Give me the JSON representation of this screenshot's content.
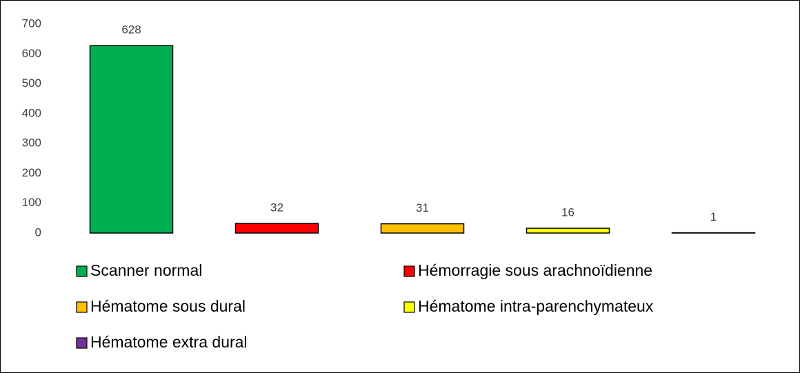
{
  "chart_data": {
    "type": "bar",
    "categories": [
      "Scanner normal",
      "Hémorragie sous arachnoïdienne",
      "Hématome sous dural",
      "Hématome intra-parenchymateux",
      "Hématome extra dural"
    ],
    "values": [
      628,
      32,
      31,
      16,
      1
    ],
    "colors": [
      "#00b050",
      "#ff0000",
      "#ffc000",
      "#ffff00",
      "#7030a0"
    ],
    "ylim": [
      0,
      700
    ],
    "yticks": [
      0,
      100,
      200,
      300,
      400,
      500,
      600,
      700
    ],
    "grid": false,
    "legend": "bottom"
  }
}
